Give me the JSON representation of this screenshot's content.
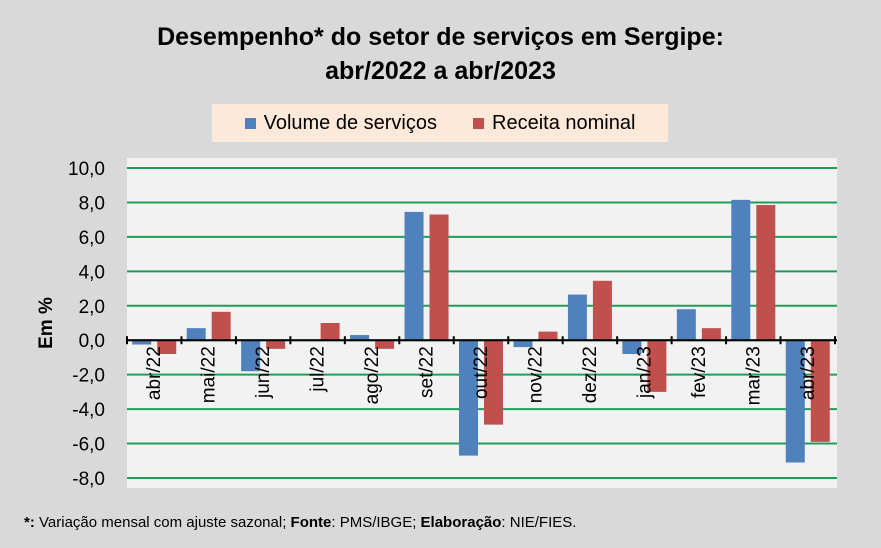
{
  "chart_data": {
    "type": "bar",
    "title": [
      "Desempenho* do setor de serviços em Sergipe:",
      "abr/2022 a abr/2023"
    ],
    "ylabel": "Em %",
    "xlabel": "",
    "ylim": [
      -8,
      10
    ],
    "yticks": [
      "10,0",
      "8,0",
      "6,0",
      "4,0",
      "2,0",
      "0,0",
      "-2,0",
      "-4,0",
      "-6,0",
      "-8,0"
    ],
    "ytick_values": [
      10,
      8,
      6,
      4,
      2,
      0,
      -2,
      -4,
      -6,
      -8
    ],
    "grid": true,
    "legend_position": "top",
    "categories": [
      "abr/22",
      "mai/22",
      "jun/22",
      "jul/22",
      "ago/22",
      "set/22",
      "out/22",
      "nov/22",
      "dez/22",
      "jan/23",
      "fev/23",
      "mar/23",
      "abr/23"
    ],
    "series": [
      {
        "name": "Volume de serviços",
        "color": "#4f81bd",
        "values": [
          -0.25,
          0.7,
          -1.8,
          0,
          0.3,
          7.45,
          -6.7,
          -0.4,
          2.65,
          -0.8,
          1.8,
          8.15,
          -7.1
        ]
      },
      {
        "name": "Receita nominal",
        "color": "#c0504d",
        "values": [
          -0.8,
          1.65,
          -0.5,
          1.0,
          -0.5,
          7.3,
          -4.9,
          0.5,
          3.45,
          -3.0,
          0.7,
          7.85,
          -5.9
        ]
      }
    ]
  },
  "footnote": {
    "star": "*:",
    "t1": " Variação mensal com ajuste sazonal; ",
    "fonte": "Fonte",
    "t2": ": PMS/IBGE; ",
    "elab": "Elaboração",
    "t3": ": NIE/FIES."
  }
}
